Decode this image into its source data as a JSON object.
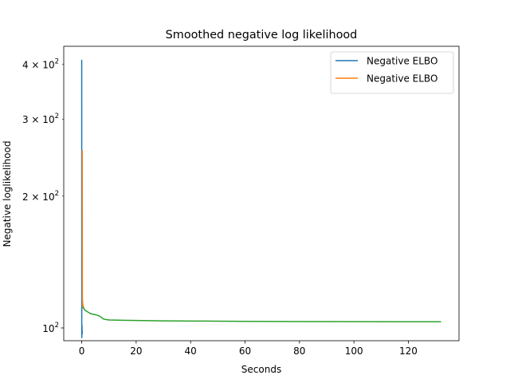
{
  "chart_data": {
    "type": "line",
    "title": "Smoothed negative log likelihood",
    "xlabel": "Seconds",
    "ylabel": "Negative loglikelihood",
    "xscale": "linear",
    "yscale": "log",
    "xlim": [
      -6.6,
      138.6
    ],
    "ylim": [
      93.5,
      440
    ],
    "xticks": [
      0,
      20,
      40,
      60,
      80,
      100,
      120
    ],
    "xtick_labels": [
      "0",
      "20",
      "40",
      "60",
      "80",
      "100",
      "120"
    ],
    "yticks": [
      100,
      200,
      300,
      400
    ],
    "ytick_labels": [
      {
        "mant": "10",
        "exp": "2",
        "mult": ""
      },
      {
        "mant": "10",
        "exp": "2",
        "mult": "2 × "
      },
      {
        "mant": "10",
        "exp": "2",
        "mult": "3 × "
      },
      {
        "mant": "10",
        "exp": "2",
        "mult": "4 × "
      }
    ],
    "grid": false,
    "legend_position": "upper right",
    "series": [
      {
        "name": "Negative ELBO",
        "color": "#1f77b4",
        "x": [
          0.0,
          0.02,
          0.04,
          0.06,
          0.08,
          0.1,
          0.12,
          0.14,
          0.16,
          0.18,
          0.2
        ],
        "y": [
          410,
          95,
          102,
          96,
          100,
          97,
          101,
          98,
          99,
          97,
          98
        ]
      },
      {
        "name": "Negative ELBO",
        "color": "#ff7f0e",
        "x": [
          0.2,
          0.25,
          0.3,
          0.35,
          0.4,
          0.45,
          0.5
        ],
        "y": [
          255,
          118,
          112,
          115,
          111,
          113,
          112
        ]
      },
      {
        "color": "#2ca02c",
        "x": [
          0.5,
          1,
          2,
          3,
          4,
          5,
          6,
          7,
          8,
          9,
          10,
          15,
          20,
          30,
          40,
          60,
          80,
          100,
          120,
          132
        ],
        "y": [
          112,
          110,
          109,
          108,
          107.5,
          107.2,
          106.8,
          106,
          104.8,
          104.5,
          104.3,
          104.1,
          104.0,
          103.8,
          103.7,
          103.5,
          103.4,
          103.35,
          103.3,
          103.3
        ]
      }
    ]
  }
}
